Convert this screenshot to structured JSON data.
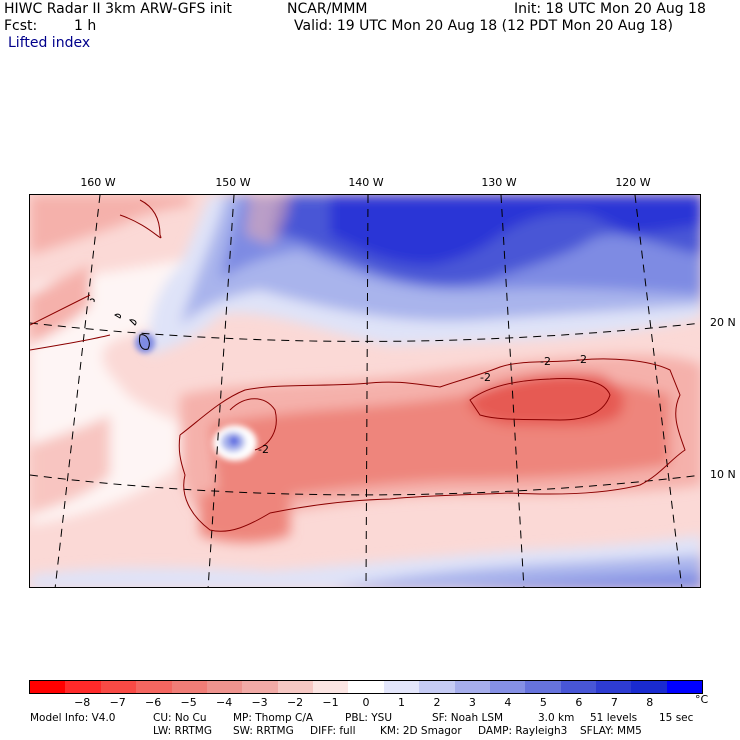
{
  "header": {
    "title_left": "HIWC Radar II 3km ARW-GFS init",
    "source": "NCAR/MMM",
    "init": "Init: 18 UTC Mon 20 Aug 18",
    "fcst_label": "Fcst:",
    "fcst_value": "1 h",
    "valid": "Valid: 19 UTC Mon 20 Aug 18 (12 PDT Mon 20 Aug 18)",
    "field": "Lifted index"
  },
  "map": {
    "lon_labels": [
      "160 W",
      "150 W",
      "140 W",
      "130 W",
      "120 W"
    ],
    "lat_labels": [
      "20 N",
      "10 N"
    ],
    "contour_labels": [
      "-2",
      "-2",
      "-2",
      "-2"
    ],
    "colors": {
      "strong_blue": "#2b36d6",
      "mid_blue": "#5866e0",
      "light_blue": "#a9b4ec",
      "pale_blue": "#dfe3f8",
      "white": "#ffffff",
      "pale_red": "#fbd9d6",
      "light_red": "#f5b1ab",
      "mid_red": "#ee857c",
      "strong_red": "#e65a52"
    }
  },
  "colorbar": {
    "ticks": [
      "−8",
      "−7",
      "−6",
      "−5",
      "−4",
      "−3",
      "−2",
      "−1",
      "0",
      "1",
      "2",
      "3",
      "4",
      "5",
      "6",
      "7",
      "8"
    ],
    "unit": "°C",
    "colors": [
      "#ff0000",
      "#ff2a2a",
      "#f94a45",
      "#f46660",
      "#f07d77",
      "#ee938e",
      "#f1aaa6",
      "#f6c8c4",
      "#fbe5e3",
      "#ffffff",
      "#e3e6fb",
      "#c5cbf4",
      "#a6aeec",
      "#8590e5",
      "#6673dd",
      "#4856d6",
      "#2e3cd2",
      "#1a2bd0",
      "#0000ff"
    ]
  },
  "footer": {
    "line1": [
      "Model Info: V4.0",
      "CU: No Cu",
      "MP: Thomp C/A",
      "PBL: YSU",
      "SF: Noah LSM",
      "3.0 km",
      "51 levels",
      "15 sec"
    ],
    "line2": [
      "LW: RRTMG",
      "SW: RRTMG",
      "DIFF: full",
      "KM: 2D Smagor",
      "DAMP: Rayleigh3",
      "SFLAY: MM5"
    ]
  }
}
